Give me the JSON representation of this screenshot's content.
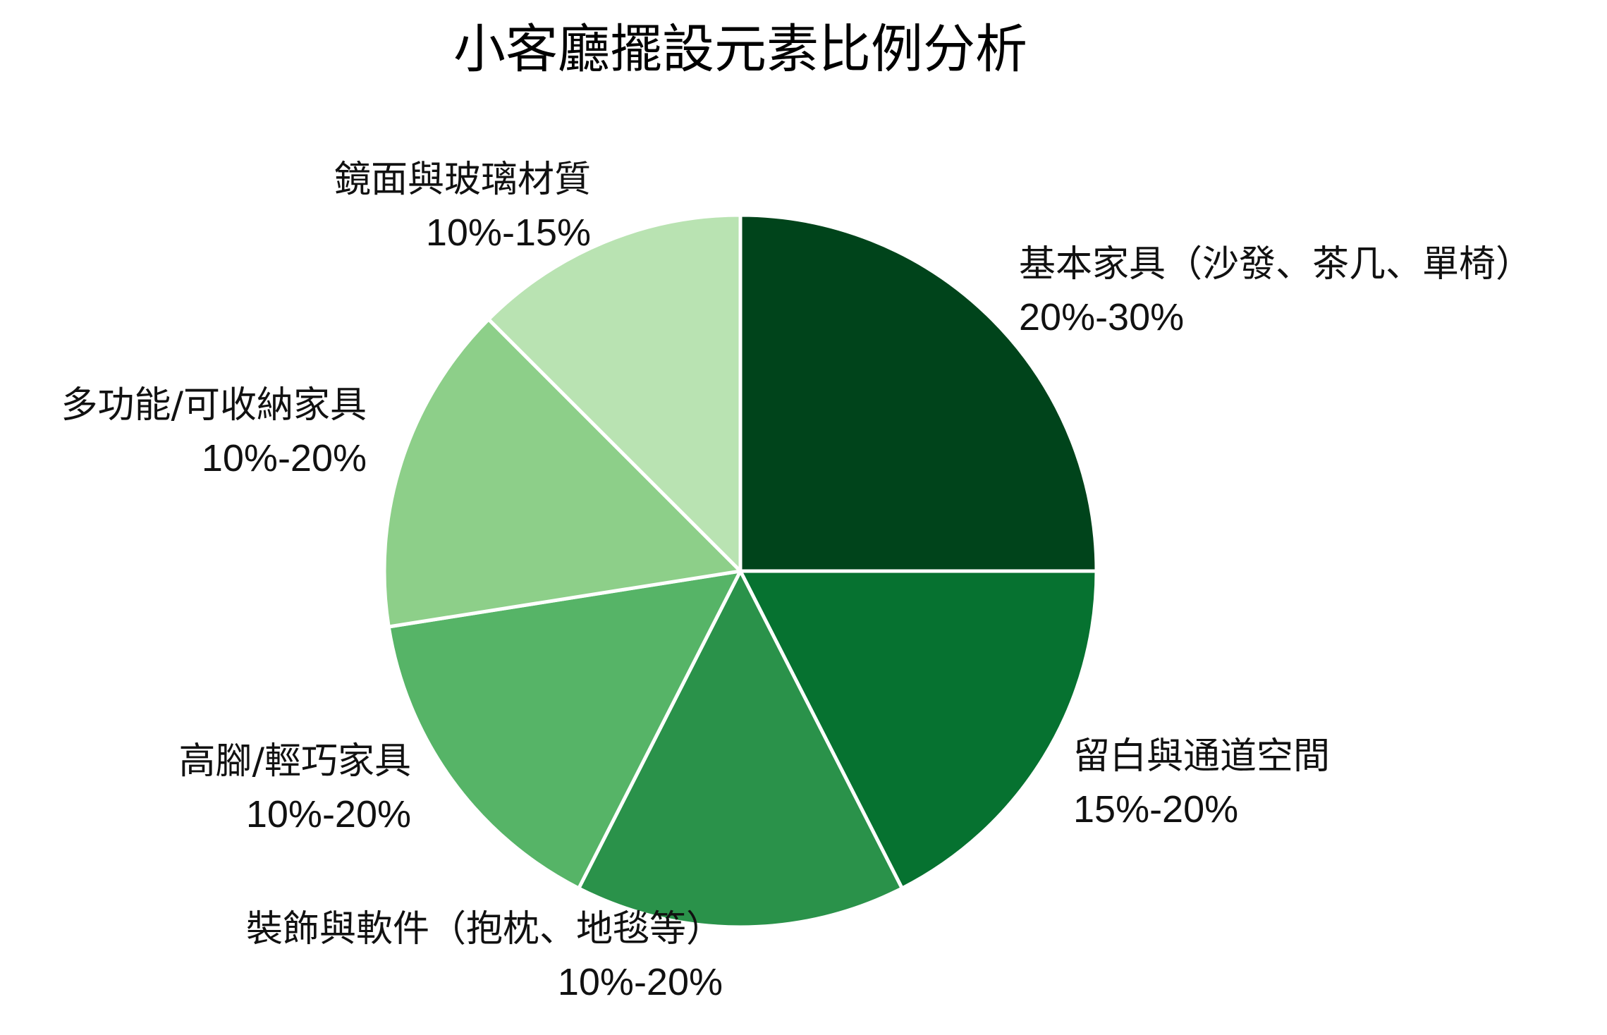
{
  "chart_data": {
    "type": "pie",
    "title": "小客廳擺設元素比例分析",
    "start_angle_deg": 90,
    "direction": "clockwise",
    "slices": [
      {
        "name": "基本家具（沙發、茶几、單椅）",
        "label": "20%-30%",
        "value": 25,
        "color": "#00441b"
      },
      {
        "name": "留白與通道空間",
        "label": "15%-20%",
        "value": 17.5,
        "color": "#067230"
      },
      {
        "name": "裝飾與軟件（抱枕、地毯等）",
        "label": "10%-20%",
        "value": 15,
        "color": "#2a924a"
      },
      {
        "name": "高腳/輕巧家具",
        "label": "10%-20%",
        "value": 15,
        "color": "#56b467"
      },
      {
        "name": "多功能/可收納家具",
        "label": "10%-20%",
        "value": 15,
        "color": "#8dcf89"
      },
      {
        "name": "鏡面與玻璃材質",
        "label": "10%-15%",
        "value": 12.5,
        "color": "#b9e3b2"
      }
    ]
  }
}
